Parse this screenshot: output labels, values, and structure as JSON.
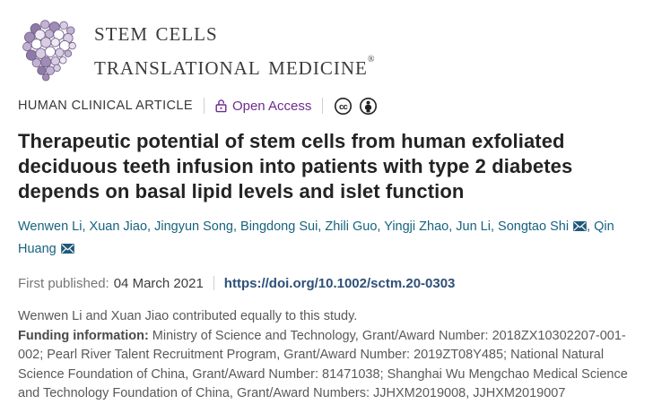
{
  "journal": {
    "name_line1": "Stem Cells",
    "name_line2": "Translational Medicine",
    "trademark": "®"
  },
  "article_meta": {
    "category": "HUMAN CLINICAL ARTICLE",
    "access_label": "Open Access",
    "cc_glyph": "cc"
  },
  "title": "Therapeutic potential of stem cells from human exfoliated deciduous teeth infusion into patients with type 2 diabetes depends on basal lipid levels and islet function",
  "authors": [
    {
      "name": "Wenwen Li",
      "corresponding": false
    },
    {
      "name": "Xuan Jiao",
      "corresponding": false
    },
    {
      "name": "Jingyun Song",
      "corresponding": false
    },
    {
      "name": "Bingdong Sui",
      "corresponding": false
    },
    {
      "name": "Zhili Guo",
      "corresponding": false
    },
    {
      "name": "Yingji Zhao",
      "corresponding": false
    },
    {
      "name": "Jun Li",
      "corresponding": false
    },
    {
      "name": "Songtao Shi",
      "corresponding": true
    },
    {
      "name": "Qin Huang",
      "corresponding": true
    }
  ],
  "publication": {
    "first_published_label": "First published:",
    "first_published_date": "04 March 2021",
    "doi_url": "https://doi.org/10.1002/sctm.20-0303"
  },
  "notes": {
    "contribution": "Wenwen Li and Xuan Jiao contributed equally to this study.",
    "funding_label": "Funding information:",
    "funding_text": " Ministry of Science and Technology, Grant/Award Number: 2018ZX10302207-001-002; Pearl River Talent Recruitment Program, Grant/Award Number: 2019ZT08Y485; National Natural Science Foundation of China, Grant/Award Number: 81471038; Shanghai Wu Mengchao Medical Science and Technology Foundation of China, Grant/Award Numbers: JJHXM2019008, JJHXM2019007"
  },
  "colors": {
    "open_access_purple": "#6e2b91",
    "author_teal": "#17637f",
    "envelope_blue": "#20587a",
    "doi_blue": "#2e5078",
    "title_charcoal": "#232323",
    "note_gray": "#595959",
    "logo_purple": "#8f7aa6"
  }
}
